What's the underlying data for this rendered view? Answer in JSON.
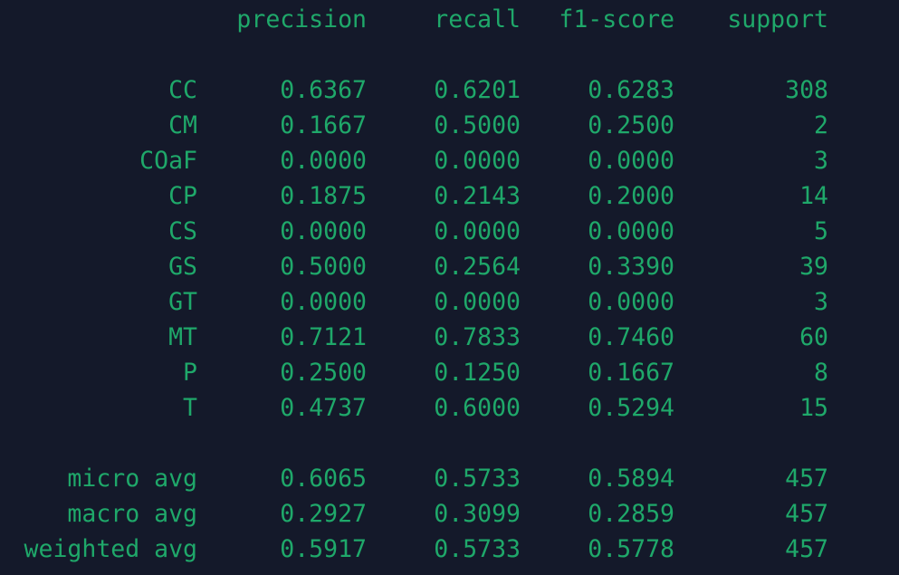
{
  "report": {
    "headers": {
      "precision": "precision",
      "recall": "recall",
      "f1": "f1-score",
      "support": "support"
    },
    "rows": [
      {
        "label": "CC",
        "precision": "0.6367",
        "recall": "0.6201",
        "f1": "0.6283",
        "support": "308"
      },
      {
        "label": "CM",
        "precision": "0.1667",
        "recall": "0.5000",
        "f1": "0.2500",
        "support": "2"
      },
      {
        "label": "COaF",
        "precision": "0.0000",
        "recall": "0.0000",
        "f1": "0.0000",
        "support": "3"
      },
      {
        "label": "CP",
        "precision": "0.1875",
        "recall": "0.2143",
        "f1": "0.2000",
        "support": "14"
      },
      {
        "label": "CS",
        "precision": "0.0000",
        "recall": "0.0000",
        "f1": "0.0000",
        "support": "5"
      },
      {
        "label": "GS",
        "precision": "0.5000",
        "recall": "0.2564",
        "f1": "0.3390",
        "support": "39"
      },
      {
        "label": "GT",
        "precision": "0.0000",
        "recall": "0.0000",
        "f1": "0.0000",
        "support": "3"
      },
      {
        "label": "MT",
        "precision": "0.7121",
        "recall": "0.7833",
        "f1": "0.7460",
        "support": "60"
      },
      {
        "label": "P",
        "precision": "0.2500",
        "recall": "0.1250",
        "f1": "0.1667",
        "support": "8"
      },
      {
        "label": "T",
        "precision": "0.4737",
        "recall": "0.6000",
        "f1": "0.5294",
        "support": "15"
      }
    ],
    "averages": [
      {
        "label": "micro avg",
        "precision": "0.6065",
        "recall": "0.5733",
        "f1": "0.5894",
        "support": "457"
      },
      {
        "label": "macro avg",
        "precision": "0.2927",
        "recall": "0.3099",
        "f1": "0.2859",
        "support": "457"
      },
      {
        "label": "weighted avg",
        "precision": "0.5917",
        "recall": "0.5733",
        "f1": "0.5778",
        "support": "457"
      }
    ]
  },
  "colors": {
    "background": "#14192a",
    "text": "#1fa86a"
  }
}
